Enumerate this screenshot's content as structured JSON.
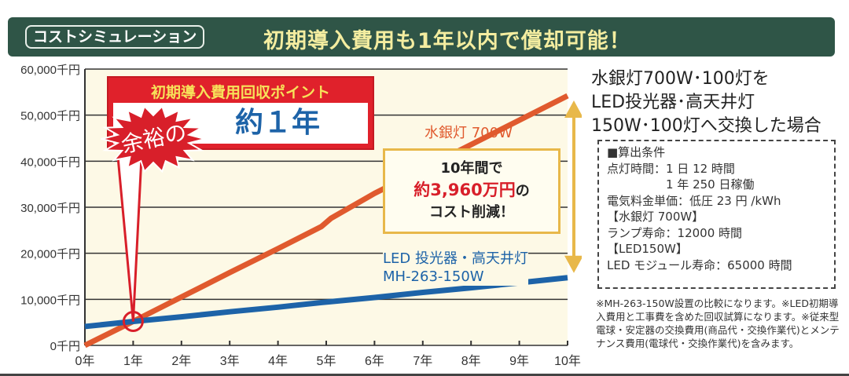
{
  "header": {
    "badge": "コストシミュレーション",
    "headline": "初期導入費用も1年以内で償却可能！",
    "bg_color": "#2f5547"
  },
  "chart_data": {
    "type": "line",
    "x": [
      0,
      1,
      2,
      3,
      4,
      4.9,
      5.1,
      6,
      7,
      8,
      9,
      10
    ],
    "xlim": [
      0,
      10
    ],
    "ylim": [
      0,
      60000
    ],
    "x_tick_labels": [
      "0年",
      "1年",
      "2年",
      "3年",
      "4年",
      "5年",
      "6年",
      "7年",
      "8年",
      "9年",
      "10年"
    ],
    "y_ticks": [
      0,
      10000,
      20000,
      30000,
      40000,
      50000,
      60000
    ],
    "y_tick_labels": [
      "0千円",
      "10,000千円",
      "20,000千円",
      "30,000千円",
      "40,000千円",
      "50,000千円",
      "60,000千円"
    ],
    "grid": "horizontal",
    "series": [
      {
        "name": "水銀灯 700W",
        "color": "#e05a2e",
        "values": [
          0,
          5200,
          10500,
          15800,
          21000,
          25800,
          27600,
          33000,
          38300,
          43600,
          48900,
          54200
        ]
      },
      {
        "name": "LED 投光器・高天井灯 MH-263-150W",
        "color": "#1d63a8",
        "values": [
          4100,
          5200,
          6200,
          7300,
          8300,
          9300,
          9500,
          10400,
          11500,
          12500,
          13600,
          14700
        ]
      }
    ],
    "annotations": {
      "recovery_title": "初期導入費用回収ポイント",
      "recovery_prefix": "余裕の",
      "recovery_value": "約１年",
      "recovery_point": {
        "x": 1,
        "y": 5200
      },
      "savings_line1": "10年間で",
      "savings_line2": "約3,960万円",
      "savings_suffix": "の",
      "savings_line3": "コスト削減！",
      "mercury_label": "水銀灯 700W",
      "led_label_1": "LED 投光器・高天井灯",
      "led_label_2": "MH-263-150W"
    }
  },
  "right_panel": {
    "title_lines": [
      "水銀灯700W･100灯を",
      "LED投光器･高天井灯",
      "150W･100灯へ交換した場合"
    ],
    "conditions": [
      "■算出条件",
      "点灯時間：1 日 12 時間",
      "　　　　　1 年 250 日稼働",
      "電気料金単価：低圧 23 円 /kWh",
      "【水銀灯 700W】",
      "ランプ寿命：12000 時間",
      "【LED150W】",
      "LED モジュール寿命：65000 時間"
    ],
    "notes": "※MH-263-150W設置の比較になります。※LED初期導入費用と工事費を含めた回収試算になります。※従来型電球・安定器の交換費用(商品代・交換作業代)とメンテナンス費用(電球代・交換作業代)を含みます。"
  }
}
